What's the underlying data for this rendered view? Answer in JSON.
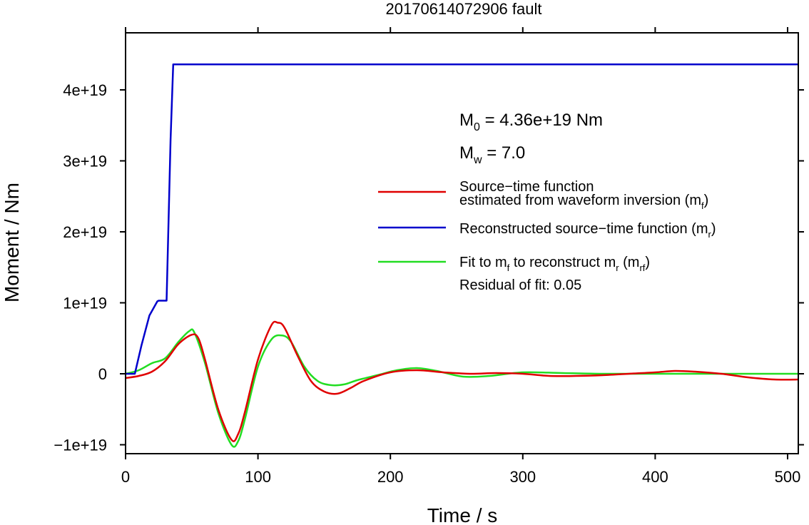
{
  "chart_data": {
    "type": "line",
    "title": "20170614072906 fault",
    "xlabel": "Time / s",
    "ylabel": "Moment / Nm",
    "xlim": [
      0,
      510
    ],
    "ylim": [
      -1.1e+19,
      4.8e+19
    ],
    "x_ticks": [
      0,
      100,
      200,
      300,
      400,
      500
    ],
    "x_tick_labels": [
      "0",
      "100",
      "200",
      "300",
      "400",
      "500"
    ],
    "y_ticks": [
      -1e+19,
      0,
      1e+19,
      2e+19,
      3e+19,
      4e+19
    ],
    "y_tick_labels": [
      "−1e+19",
      "0",
      "1e+19",
      "2e+19",
      "3e+19",
      "4e+19"
    ],
    "grid": false,
    "legend_position": "right",
    "annotations": {
      "m0_base": "M",
      "m0_sub": "0",
      "m0_rest": " = 4.36e+19 Nm",
      "mw_base": "M",
      "mw_sub": "w",
      "mw_rest": " = 7.0",
      "residual": "Residual of fit: 0.05"
    },
    "series": [
      {
        "name": "Source−time function estimated from waveform inversion (m_f)",
        "legend_line1": "Source−time function",
        "legend_line2": "estimated from waveform inversion (m",
        "legend_sub": "f",
        "legend_end": ")",
        "color": "#e00000",
        "x": [
          0,
          10,
          20,
          30,
          40,
          50,
          55,
          60,
          70,
          80,
          85,
          90,
          100,
          110,
          115,
          120,
          130,
          140,
          150,
          160,
          170,
          180,
          200,
          220,
          240,
          260,
          280,
          300,
          320,
          340,
          360,
          380,
          400,
          415,
          430,
          450,
          470,
          490,
          510
        ],
        "y": [
          -6e+17,
          -3e+17,
          3e+17,
          1.8e+18,
          4.2e+18,
          5.5e+18,
          5e+18,
          2e+18,
          -5e+18,
          -9.3e+18,
          -8.5e+18,
          -5.5e+18,
          2e+18,
          6.8e+18,
          7.2e+18,
          6.5e+18,
          2.5e+18,
          -1e+18,
          -2.5e+18,
          -2.8e+18,
          -2e+18,
          -1e+18,
          2e+17,
          5e+17,
          2e+17,
          0.0,
          1e+17,
          0.0,
          -3e+17,
          -3e+17,
          -2e+17,
          0.0,
          2e+17,
          4e+17,
          3e+17,
          0.0,
          -5e+17,
          -8e+17,
          -8e+17
        ]
      },
      {
        "name": "Reconstructed source−time function (m_r)",
        "legend_line1": "Reconstructed source−time function (m",
        "legend_sub": "r",
        "legend_end": ")",
        "color": "#0000cc",
        "x": [
          0,
          7,
          12,
          18,
          24,
          25,
          30,
          31,
          34,
          36,
          40,
          510
        ],
        "y": [
          0,
          0,
          4e+18,
          8.2e+18,
          1.02e+19,
          1.03e+19,
          1.03e+19,
          1.03e+19,
          3.3e+19,
          4.36e+19,
          4.36e+19,
          4.36e+19
        ]
      },
      {
        "name": "Fit to m_f to reconstruct m_r (m_rf)",
        "legend_line1a": "Fit to m",
        "legend_sub1": "f",
        "legend_line1b": " to reconstruct m",
        "legend_sub2": "r",
        "legend_line1c": " (m",
        "legend_sub3": "rf",
        "legend_end": ")",
        "color": "#22dd22",
        "x": [
          0,
          10,
          20,
          30,
          40,
          48,
          52,
          60,
          70,
          80,
          85,
          90,
          100,
          110,
          118,
          125,
          135,
          145,
          155,
          165,
          175,
          190,
          205,
          220,
          235,
          255,
          275,
          300,
          330,
          360,
          400,
          450,
          510
        ],
        "y": [
          0.0,
          5e+17,
          1.5e+18,
          2.2e+18,
          4.5e+18,
          6e+18,
          5.8e+18,
          1.5e+18,
          -5.5e+18,
          -1e+19,
          -9.5e+18,
          -6.5e+18,
          1e+18,
          4.8e+18,
          5.4e+18,
          4.5e+18,
          1e+18,
          -1e+18,
          -1.6e+18,
          -1.5e+18,
          -9e+17,
          -2e+17,
          5e+17,
          8e+17,
          4e+17,
          -4e+17,
          -3e+17,
          2e+17,
          1e+17,
          0.0,
          0.0,
          0.0,
          0.0
        ]
      }
    ]
  }
}
